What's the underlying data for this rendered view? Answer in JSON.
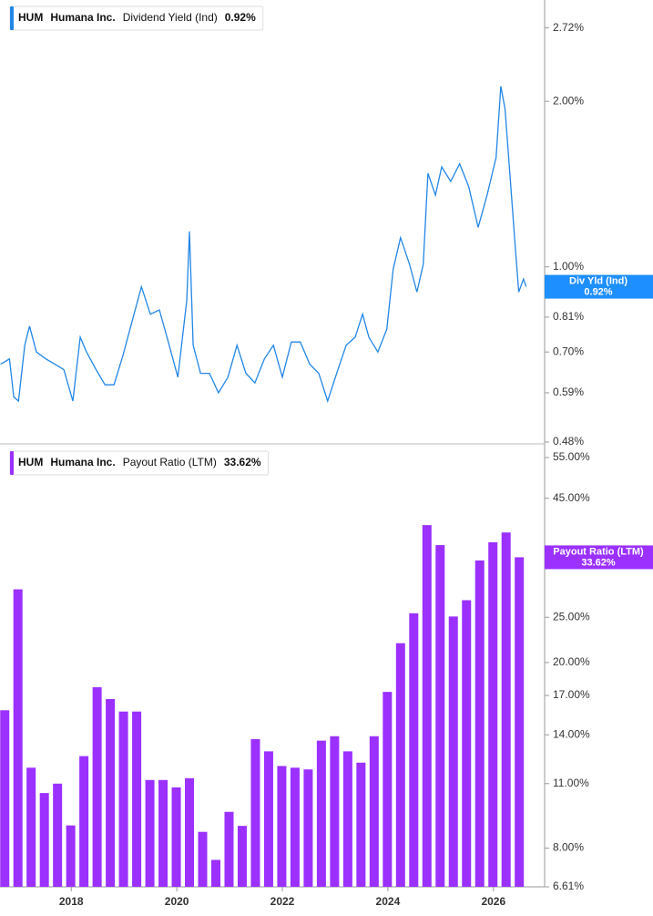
{
  "chart_data": [
    {
      "type": "line",
      "ticker": "HUM",
      "company": "Humana Inc.",
      "title": "Dividend Yield (Ind)",
      "latest": "0.92%",
      "badge_label": "Div Yld (Ind)",
      "badge_value": "0.92%",
      "log_scale": true,
      "color": "#2286e6",
      "xlim": [
        2016.65,
        2026.97
      ],
      "ylim": [
        0.48,
        3.0
      ],
      "yticks": [
        {
          "value": 0.48,
          "label": "0.48%"
        },
        {
          "value": 0.59,
          "label": "0.59%"
        },
        {
          "value": 0.7,
          "label": "0.70%"
        },
        {
          "value": 0.81,
          "label": "0.81%"
        },
        {
          "value": 1.0,
          "label": "1.00%"
        },
        {
          "value": 2.0,
          "label": "2.00%"
        },
        {
          "value": 2.72,
          "label": "2.72%"
        }
      ],
      "x": [
        2016.66,
        2016.83,
        2016.91,
        2017.0,
        2017.12,
        2017.21,
        2017.34,
        2017.52,
        2017.69,
        2017.86,
        2018.03,
        2018.17,
        2018.29,
        2018.47,
        2018.64,
        2018.81,
        2018.98,
        2019.16,
        2019.33,
        2019.5,
        2019.67,
        2019.84,
        2020.02,
        2020.19,
        2020.24,
        2020.31,
        2020.45,
        2020.62,
        2020.79,
        2020.97,
        2021.14,
        2021.31,
        2021.48,
        2021.66,
        2021.83,
        2022.0,
        2022.17,
        2022.34,
        2022.52,
        2022.69,
        2022.86,
        2023.03,
        2023.21,
        2023.38,
        2023.52,
        2023.64,
        2023.81,
        2023.98,
        2024.1,
        2024.24,
        2024.41,
        2024.55,
        2024.67,
        2024.76,
        2024.9,
        2025.02,
        2025.19,
        2025.36,
        2025.53,
        2025.71,
        2025.88,
        2026.05,
        2026.14,
        2026.22,
        2026.31,
        2026.4,
        2026.48,
        2026.57,
        2026.62
      ],
      "values": [
        0.665,
        0.68,
        0.58,
        0.57,
        0.72,
        0.78,
        0.7,
        0.68,
        0.665,
        0.65,
        0.57,
        0.745,
        0.7,
        0.65,
        0.61,
        0.61,
        0.69,
        0.8,
        0.92,
        0.82,
        0.835,
        0.73,
        0.63,
        0.87,
        1.16,
        0.72,
        0.64,
        0.64,
        0.59,
        0.63,
        0.72,
        0.64,
        0.615,
        0.68,
        0.72,
        0.63,
        0.73,
        0.73,
        0.665,
        0.64,
        0.57,
        0.64,
        0.72,
        0.745,
        0.82,
        0.745,
        0.7,
        0.77,
        0.99,
        1.13,
        1.01,
        0.9,
        1.01,
        1.48,
        1.35,
        1.52,
        1.43,
        1.54,
        1.4,
        1.18,
        1.35,
        1.58,
        2.13,
        1.94,
        1.48,
        1.13,
        0.9,
        0.95,
        0.92
      ]
    },
    {
      "type": "bar",
      "ticker": "HUM",
      "company": "Humana Inc.",
      "title": "Payout Ratio (LTM)",
      "latest": "33.62%",
      "badge_label": "Payout Ratio (LTM)",
      "badge_value": "33.62%",
      "log_scale": true,
      "color": "#9b30ff",
      "xlim": [
        2016.65,
        2026.97
      ],
      "xticks": [
        2018,
        2020,
        2022,
        2024,
        2026
      ],
      "ylim": [
        6.61,
        55
      ],
      "yticks": [
        {
          "value": 6.61,
          "label": "6.61%"
        },
        {
          "value": 8,
          "label": "8.00%"
        },
        {
          "value": 11,
          "label": "11.00%"
        },
        {
          "value": 14,
          "label": "14.00%"
        },
        {
          "value": 17,
          "label": "17.00%"
        },
        {
          "value": 20,
          "label": "20.00%"
        },
        {
          "value": 25,
          "label": "25.00%"
        },
        {
          "value": 45,
          "label": "45.00%"
        },
        {
          "value": 55,
          "label": "55.00%"
        }
      ],
      "x": [
        2016.74,
        2016.99,
        2017.24,
        2017.49,
        2017.74,
        2017.99,
        2018.24,
        2018.49,
        2018.74,
        2018.99,
        2019.24,
        2019.49,
        2019.74,
        2019.99,
        2020.24,
        2020.49,
        2020.74,
        2020.99,
        2021.24,
        2021.49,
        2021.74,
        2021.99,
        2022.24,
        2022.49,
        2022.74,
        2022.99,
        2023.24,
        2023.49,
        2023.74,
        2023.99,
        2024.24,
        2024.49,
        2024.74,
        2024.99,
        2025.24,
        2025.49,
        2025.74,
        2025.99,
        2026.24,
        2026.49
      ],
      "values": [
        15.8,
        28.7,
        11.9,
        10.5,
        11.0,
        8.95,
        12.6,
        17.7,
        16.7,
        15.7,
        15.7,
        11.2,
        11.2,
        10.8,
        11.3,
        8.67,
        7.55,
        9.57,
        8.93,
        13.7,
        12.9,
        12.0,
        11.9,
        11.8,
        13.6,
        13.9,
        12.9,
        12.2,
        13.9,
        17.3,
        22.0,
        25.5,
        39.4,
        35.7,
        25.1,
        27.2,
        33.1,
        36.2,
        38.0,
        33.62
      ]
    }
  ]
}
